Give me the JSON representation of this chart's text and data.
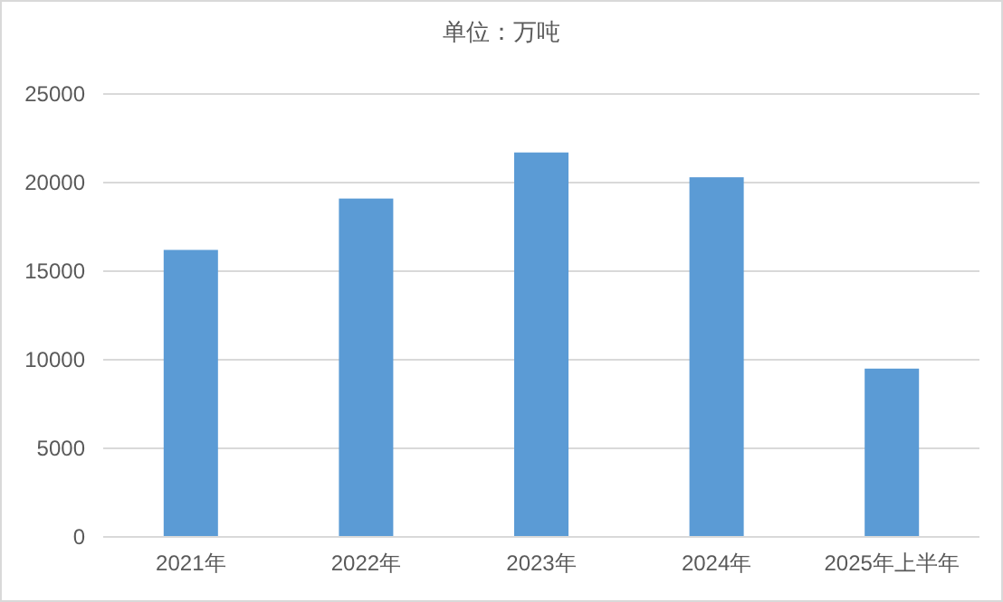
{
  "chart_data": {
    "type": "bar",
    "title": "单位：万吨",
    "categories": [
      "2021年",
      "2022年",
      "2023年",
      "2024年",
      "2025年上半年"
    ],
    "values": [
      16200,
      19100,
      21700,
      20300,
      9500
    ],
    "color": "#5b9bd5",
    "ylim": [
      0,
      25000
    ],
    "yticks": [
      0,
      5000,
      10000,
      15000,
      20000,
      25000
    ],
    "grid": "y"
  }
}
